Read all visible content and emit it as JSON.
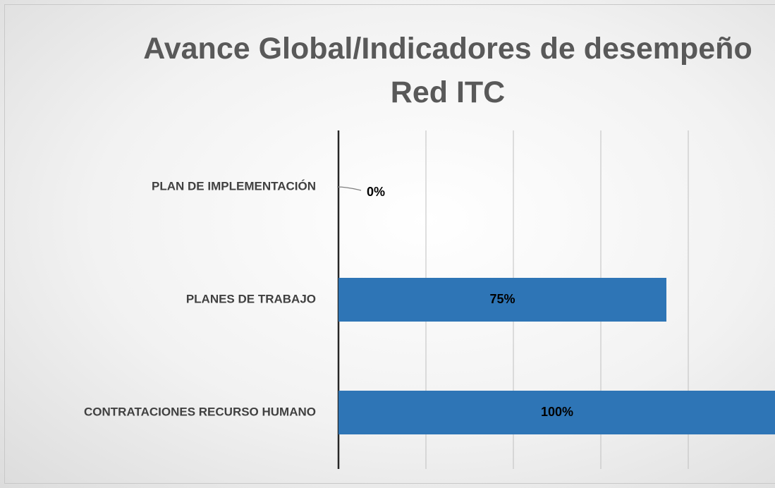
{
  "chart_data": {
    "type": "barh",
    "title": "Avance Global/Indicadores de desempeño\nRed ITC",
    "categories": [
      "PLAN DE IMPLEMENTACIÓN",
      "PLANES DE TRABAJO",
      "CONTRATACIONES RECURSO HUMANO"
    ],
    "values": [
      0,
      75,
      100
    ],
    "value_labels": [
      "0%",
      "75%",
      "100%"
    ],
    "color": "#2e75b6",
    "xlim": [
      0,
      100
    ],
    "xticks": [
      0,
      20,
      40,
      60,
      80,
      100
    ],
    "grid": true
  }
}
